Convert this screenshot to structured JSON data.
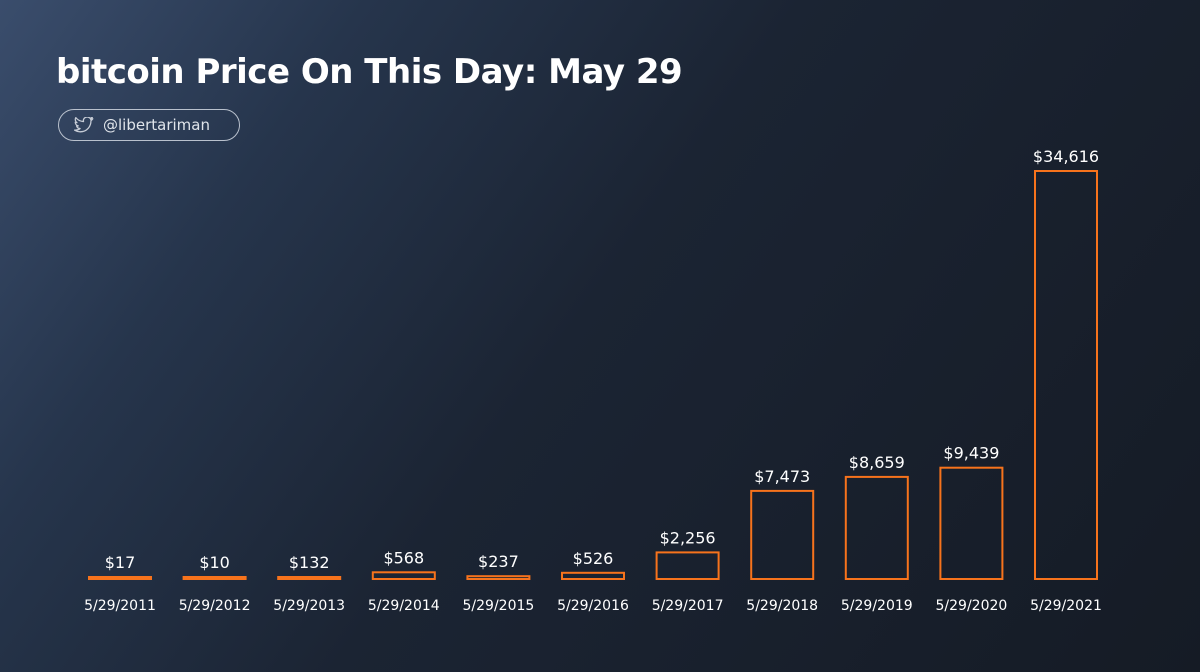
{
  "header": {
    "title": "bitcoin Price On This Day: May 29",
    "twitter_handle": "@libertariman",
    "icon": "twitter-bird-icon"
  },
  "colors": {
    "bar_stroke": "#f7731c",
    "text": "#ffffff"
  },
  "chart_data": {
    "type": "bar",
    "title": "bitcoin Price On This Day: May 29",
    "xlabel": "",
    "ylabel": "",
    "grid": false,
    "legend": "none",
    "ylim": [
      0,
      34616
    ],
    "categories": [
      "5/29/2011",
      "5/29/2012",
      "5/29/2013",
      "5/29/2014",
      "5/29/2015",
      "5/29/2016",
      "5/29/2017",
      "5/29/2018",
      "5/29/2019",
      "5/29/2020",
      "5/29/2021"
    ],
    "values": [
      17,
      10,
      132,
      568,
      237,
      526,
      2256,
      7473,
      8659,
      9439,
      34616
    ],
    "value_labels": [
      "$17",
      "$10",
      "$132",
      "$568",
      "$237",
      "$526",
      "$2,256",
      "$7,473",
      "$8,659",
      "$9,439",
      "$34,616"
    ]
  }
}
